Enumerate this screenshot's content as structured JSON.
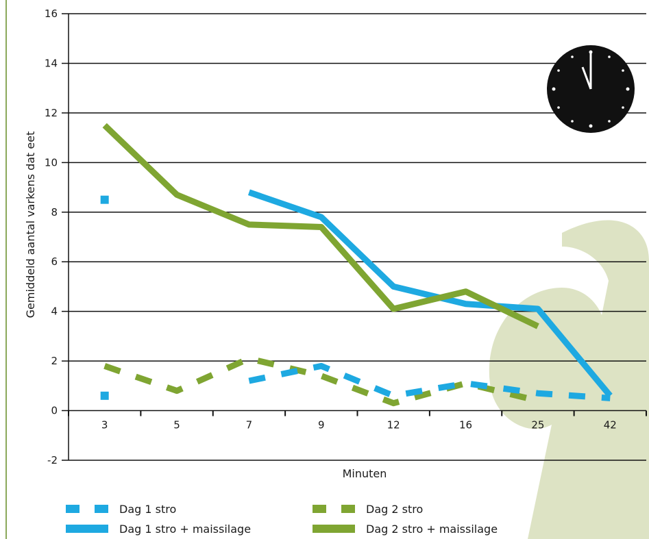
{
  "chart_data": {
    "type": "line",
    "categories": [
      "3",
      "5",
      "7",
      "9",
      "12",
      "16",
      "25",
      "42"
    ],
    "xlabel": "Minuten",
    "ylabel": "Gemiddeld aantal varkens dat eet",
    "ylim": [
      -2,
      16
    ],
    "yticks": [
      -2,
      0,
      2,
      4,
      6,
      8,
      10,
      12,
      14,
      16
    ],
    "grid": true,
    "legend_position": "bottom",
    "series": [
      {
        "name": "Dag 1 stro",
        "values": [
          0.6,
          null,
          1.2,
          1.8,
          0.6,
          1.1,
          0.7,
          0.5
        ],
        "color": "#1ea9e1",
        "style": "dashed"
      },
      {
        "name": "Dag 1 stro",
        "values": [
          8.5,
          null,
          null,
          null,
          null,
          null,
          null,
          null
        ],
        "color": "#1ea9e1",
        "style": "marker"
      },
      {
        "name": "Dag 2 stro",
        "values": [
          1.8,
          0.8,
          2.1,
          1.4,
          0.3,
          1.1,
          0.4,
          null
        ],
        "color": "#7fa532",
        "style": "dashed"
      },
      {
        "name": "Dag 1 stro + maissilage",
        "values": [
          null,
          null,
          8.8,
          7.8,
          5.0,
          4.3,
          4.1,
          0.6
        ],
        "color": "#1ea9e1",
        "style": "solid"
      },
      {
        "name": "Dag 2 stro + maissilage",
        "values": [
          11.5,
          8.7,
          7.5,
          7.4,
          4.1,
          4.8,
          3.4,
          null
        ],
        "color": "#7fa532",
        "style": "solid"
      }
    ],
    "legend": [
      {
        "label": "Dag 1 stro",
        "color": "#1ea9e1",
        "style": "dashed"
      },
      {
        "label": "Dag 2 stro",
        "color": "#7fa532",
        "style": "dashed"
      },
      {
        "label": "Dag 1 stro + maissilage",
        "color": "#1ea9e1",
        "style": "solid"
      },
      {
        "label": "Dag 2 stro + maissilage",
        "color": "#7fa532",
        "style": "solid"
      }
    ]
  },
  "decorations": {
    "watermark_color": "#dde3c4",
    "left_rule_color": "#8aa85a",
    "clock_icon": "clock-icon"
  }
}
